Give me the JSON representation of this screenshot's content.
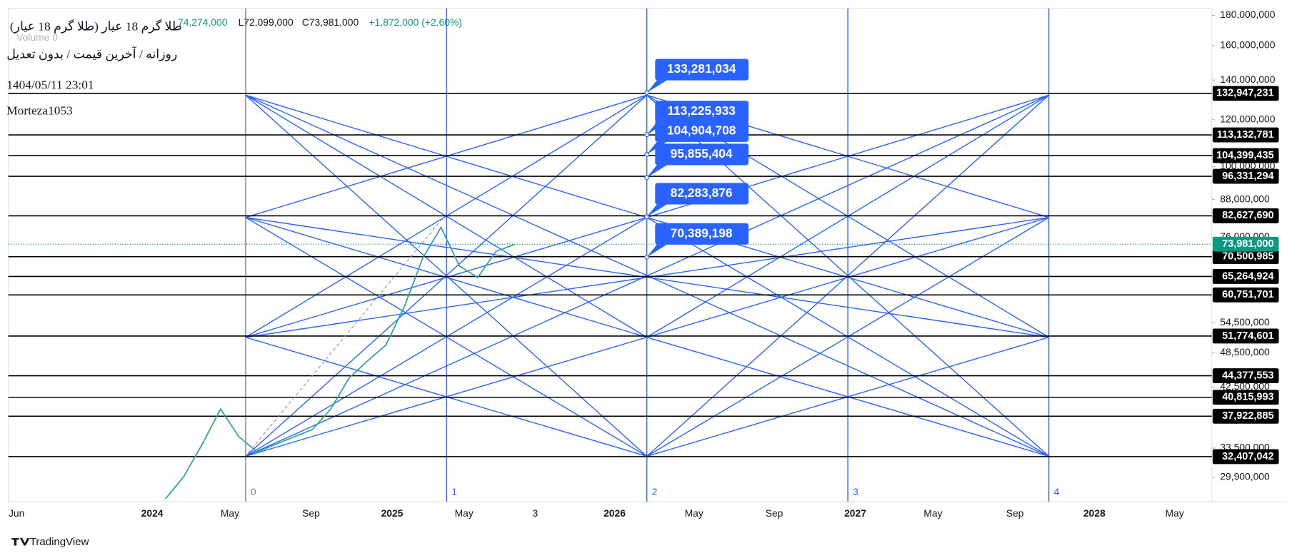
{
  "header": {
    "symbol": "(طلا گرم 18 عیار (طلا گرم 18 عیار",
    "open": "74,274,000",
    "low": "L72,099,000",
    "close": "C73,981,000",
    "change": "+1,872,000 (+2.60%)",
    "volume": "Volume 0",
    "interval": "روزانه / آخرین قیمت / بدون تعدیل",
    "datetime": "1404/05/11 23:01",
    "author": "Morteza1053"
  },
  "price_axis": {
    "log_scale": true,
    "ylim": [
      27200000,
      185000000
    ],
    "yticks": [
      {
        "value": 180000000,
        "label": "180,000,000"
      },
      {
        "value": 160000000,
        "label": "160,000,000"
      },
      {
        "value": 140000000,
        "label": "140,000,000"
      },
      {
        "value": 120000000,
        "label": "120,000,000"
      },
      {
        "value": 100000000,
        "label": "100,000,000"
      },
      {
        "value": 88000000,
        "label": "88,000,000"
      },
      {
        "value": 76000000,
        "label": "76,000,000"
      },
      {
        "value": 54500000,
        "label": "54,500,000"
      },
      {
        "value": 48500000,
        "label": "48,500,000"
      },
      {
        "value": 42500000,
        "label": "42,500,000"
      },
      {
        "value": 33500000,
        "label": "33,500,000"
      },
      {
        "value": 29900000,
        "label": "29,900,000"
      }
    ]
  },
  "levels": [
    {
      "value": 132947231,
      "label": "132,947,231"
    },
    {
      "value": 113132781,
      "label": "113,132,781"
    },
    {
      "value": 104399435,
      "label": "104,399,435"
    },
    {
      "value": 96331294,
      "label": "96,331,294"
    },
    {
      "value": 82627690,
      "label": "82,627,690"
    },
    {
      "value": 70500985,
      "label": "70,500,985"
    },
    {
      "value": 65264924,
      "label": "65,264,924"
    },
    {
      "value": 60751701,
      "label": "60,751,701"
    },
    {
      "value": 51774601,
      "label": "51,774,601"
    },
    {
      "value": 44377553,
      "label": "44,377,553"
    },
    {
      "value": 40815993,
      "label": "40,815,993"
    },
    {
      "value": 37922885,
      "label": "37,922,885"
    },
    {
      "value": 32407042,
      "label": "32,407,042"
    }
  ],
  "current_price": {
    "value": 73981000,
    "label": "73,981,000",
    "color": "#089981"
  },
  "callouts": [
    {
      "value": 133281034,
      "label": "133,281,034"
    },
    {
      "value": 113225933,
      "label": "113,225,933"
    },
    {
      "value": 104904708,
      "label": "104,904,708"
    },
    {
      "value": 95855404,
      "label": "95,855,404"
    },
    {
      "value": 82283876,
      "label": "82,283,876"
    },
    {
      "value": 70389198,
      "label": "70,389,198"
    }
  ],
  "callout_color": "#2962ff",
  "time_axis": [
    "Jun",
    "2024",
    "May",
    "Sep",
    "2025",
    "May",
    "3",
    "2026",
    "May",
    "Sep",
    "2027",
    "May",
    "Sep",
    "2028",
    "May"
  ],
  "gann_indices": [
    "0",
    "1",
    "2",
    "3",
    "4"
  ],
  "price_series": [
    27500000,
    30000000,
    34000000,
    39000000,
    35000000,
    33000000,
    34000000,
    35000000,
    36000000,
    39000000,
    44000000,
    47000000,
    50000000,
    58000000,
    70000000,
    79000000,
    68000000,
    65000000,
    72000000,
    73900000
  ],
  "brand": "TradingView"
}
